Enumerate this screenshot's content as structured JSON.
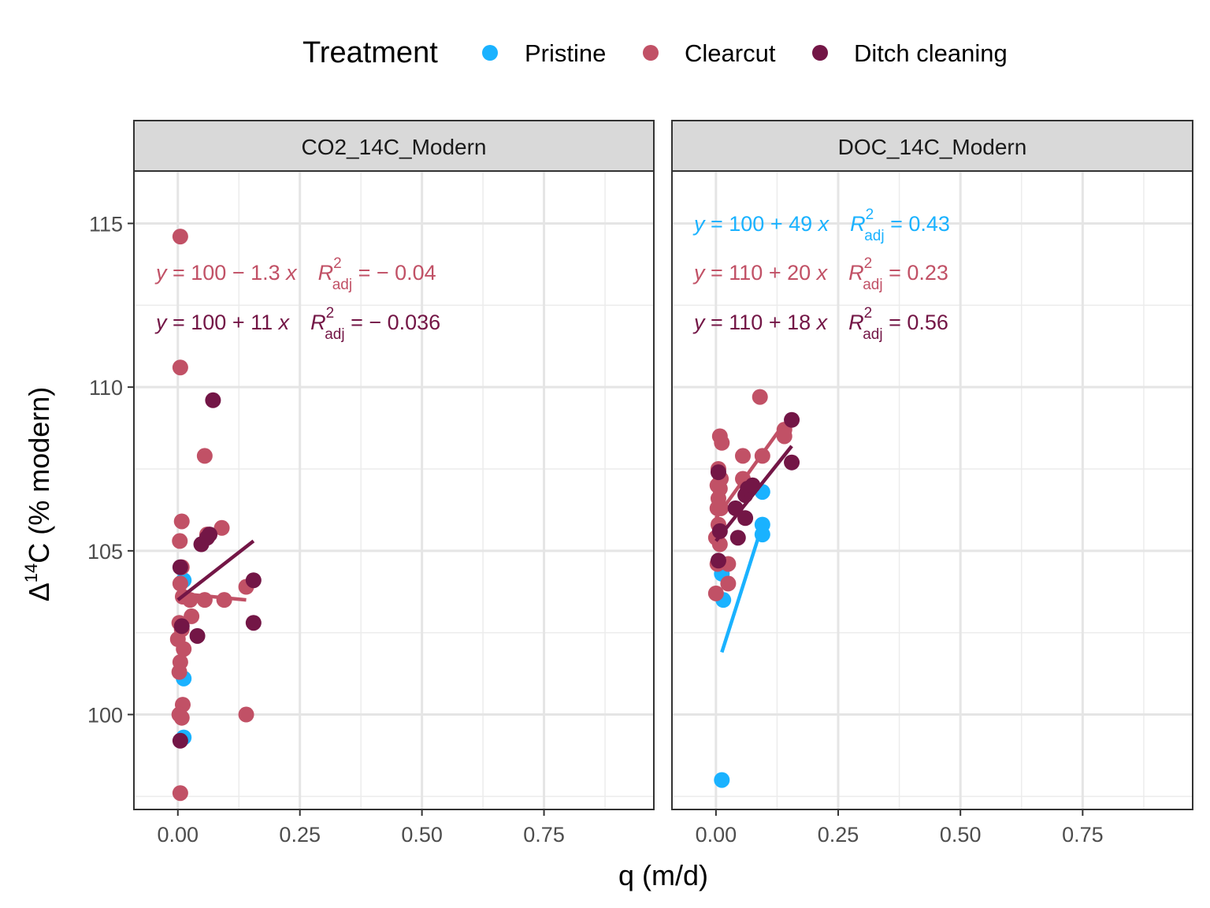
{
  "chart_data": {
    "type": "scatter",
    "xlabel": "q (m/d)",
    "ylabel": "Δ¹⁴C (% modern)",
    "xlim": [
      -0.09,
      0.975
    ],
    "ylim": [
      97.1,
      116.6
    ],
    "x_ticks": [
      0.0,
      0.25,
      0.5,
      0.75
    ],
    "x_tick_labels": [
      "0.00",
      "0.25",
      "0.50",
      "0.75"
    ],
    "y_ticks": [
      100,
      105,
      110,
      115
    ],
    "y_tick_labels": [
      "100",
      "105",
      "110",
      "115"
    ],
    "grid": true,
    "legend": {
      "title": "Treatment",
      "position": "top",
      "entries": [
        {
          "label": "Pristine",
          "color": "#1AB2FF"
        },
        {
          "label": "Clearcut",
          "color": "#C15166"
        },
        {
          "label": "Ditch cleaning",
          "color": "#731646"
        }
      ]
    },
    "panels": [
      {
        "strip": "CO2_14C_Modern",
        "series": [
          {
            "name": "Pristine",
            "color": "#1AB2FF",
            "points": [
              [
                0.012,
                104.1
              ],
              [
                0.012,
                101.1
              ],
              [
                0.012,
                99.3
              ]
            ],
            "fit_line": null
          },
          {
            "name": "Clearcut",
            "color": "#C15166",
            "points": [
              [
                0.005,
                114.6
              ],
              [
                0.005,
                110.6
              ],
              [
                0.008,
                105.9
              ],
              [
                0.004,
                105.3
              ],
              [
                0.008,
                104.5
              ],
              [
                0.005,
                104.0
              ],
              [
                0.01,
                103.6
              ],
              [
                0.003,
                102.8
              ],
              [
                0.0,
                102.3
              ],
              [
                0.008,
                102.6
              ],
              [
                0.012,
                102.0
              ],
              [
                0.005,
                101.6
              ],
              [
                0.003,
                101.3
              ],
              [
                0.01,
                100.3
              ],
              [
                0.003,
                100.0
              ],
              [
                0.008,
                99.9
              ],
              [
                0.005,
                97.6
              ],
              [
                0.025,
                103.5
              ],
              [
                0.028,
                103.0
              ],
              [
                0.055,
                103.5
              ],
              [
                0.055,
                107.9
              ],
              [
                0.06,
                105.5
              ],
              [
                0.09,
                105.7
              ],
              [
                0.095,
                103.5
              ],
              [
                0.14,
                103.9
              ],
              [
                0.14,
                100.0
              ]
            ],
            "fit_line": {
              "x": [
                0.0,
                0.14
              ],
              "y": [
                103.7,
                103.5
              ]
            }
          },
          {
            "name": "Ditch cleaning",
            "color": "#731646",
            "points": [
              [
                0.005,
                104.5
              ],
              [
                0.008,
                102.7
              ],
              [
                0.005,
                99.2
              ],
              [
                0.04,
                102.4
              ],
              [
                0.048,
                105.2
              ],
              [
                0.06,
                105.4
              ],
              [
                0.065,
                105.5
              ],
              [
                0.072,
                109.6
              ],
              [
                0.155,
                104.1
              ],
              [
                0.155,
                102.8
              ]
            ],
            "fit_line": {
              "x": [
                0.0,
                0.155
              ],
              "y": [
                103.5,
                105.3
              ]
            }
          }
        ],
        "equations": [
          {
            "color": "#C15166",
            "lhs": "y",
            "rhs": " = 100 − 1.3 ",
            "xvar": "x",
            "R": "R",
            "sub": "adj",
            "sup": "2",
            "value": " = − 0.04"
          },
          {
            "color": "#731646",
            "lhs": "y",
            "rhs": " = 100 + 11 ",
            "xvar": "x",
            "R": "R",
            "sub": "adj",
            "sup": "2",
            "value": " = − 0.036"
          }
        ]
      },
      {
        "strip": "DOC_14C_Modern",
        "series": [
          {
            "name": "Pristine",
            "color": "#1AB2FF",
            "points": [
              [
                0.095,
                106.8
              ],
              [
                0.095,
                105.8
              ],
              [
                0.095,
                105.5
              ],
              [
                0.012,
                104.3
              ],
              [
                0.015,
                103.5
              ],
              [
                0.012,
                98.0
              ]
            ],
            "fit_line": {
              "x": [
                0.012,
                0.095
              ],
              "y": [
                101.9,
                105.8
              ]
            }
          },
          {
            "name": "Clearcut",
            "color": "#C15166",
            "points": [
              [
                0.008,
                108.5
              ],
              [
                0.012,
                108.3
              ],
              [
                0.005,
                107.5
              ],
              [
                0.01,
                107.2
              ],
              [
                0.003,
                107.0
              ],
              [
                0.008,
                106.9
              ],
              [
                0.005,
                106.6
              ],
              [
                0.01,
                106.3
              ],
              [
                0.003,
                106.3
              ],
              [
                0.005,
                105.8
              ],
              [
                0.0,
                105.4
              ],
              [
                0.008,
                105.2
              ],
              [
                0.003,
                104.6
              ],
              [
                0.0,
                103.7
              ],
              [
                0.025,
                104.6
              ],
              [
                0.025,
                104.0
              ],
              [
                0.055,
                107.9
              ],
              [
                0.055,
                107.2
              ],
              [
                0.07,
                106.9
              ],
              [
                0.09,
                109.7
              ],
              [
                0.095,
                107.9
              ],
              [
                0.14,
                108.7
              ],
              [
                0.14,
                108.5
              ]
            ],
            "fit_line": {
              "x": [
                0.0,
                0.14
              ],
              "y": [
                106.0,
                108.9
              ]
            }
          },
          {
            "name": "Ditch cleaning",
            "color": "#731646",
            "points": [
              [
                0.005,
                107.4
              ],
              [
                0.008,
                105.6
              ],
              [
                0.005,
                104.7
              ],
              [
                0.04,
                106.3
              ],
              [
                0.045,
                105.4
              ],
              [
                0.06,
                106.7
              ],
              [
                0.06,
                106.0
              ],
              [
                0.065,
                106.9
              ],
              [
                0.075,
                107.0
              ],
              [
                0.155,
                109.0
              ],
              [
                0.155,
                107.7
              ]
            ],
            "fit_line": {
              "x": [
                0.0,
                0.155
              ],
              "y": [
                105.3,
                108.2
              ]
            }
          }
        ],
        "equations": [
          {
            "color": "#1AB2FF",
            "lhs": "y",
            "rhs": " = 100 + 49 ",
            "xvar": "x",
            "R": "R",
            "sub": "adj",
            "sup": "2",
            "value": " = 0.43"
          },
          {
            "color": "#C15166",
            "lhs": "y",
            "rhs": " = 110 + 20 ",
            "xvar": "x",
            "R": "R",
            "sub": "adj",
            "sup": "2",
            "value": " = 0.23"
          },
          {
            "color": "#731646",
            "lhs": "y",
            "rhs": " = 110 + 18 ",
            "xvar": "x",
            "R": "R",
            "sub": "adj",
            "sup": "2",
            "value": " = 0.56"
          }
        ]
      }
    ]
  }
}
